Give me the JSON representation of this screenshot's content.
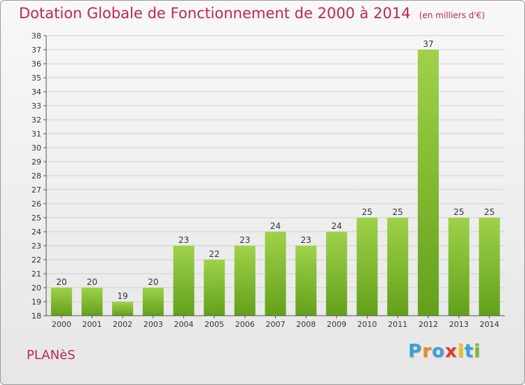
{
  "title": "Dotation Globale de Fonctionnement de 2000 à 2014",
  "subtitle": "(en milliers d'€)",
  "commune": "PLANèS",
  "logo": {
    "text": "Proxiti",
    "colors": [
      "#3aa0d8",
      "#f08a1c",
      "#3aa0d8",
      "#e23b2e",
      "#f2c200",
      "#3aa0d8",
      "#7ab929"
    ]
  },
  "colors": {
    "title": "#c0255a",
    "bar_top": "#9fd24a",
    "bar_bottom": "#63a01a",
    "grid": "#d0d0d0"
  },
  "chart_data": {
    "type": "bar",
    "title": "Dotation Globale de Fonctionnement de 2000 à 2014",
    "subtitle": "(en milliers d'€)",
    "xlabel": "",
    "ylabel": "",
    "categories": [
      "2000",
      "2001",
      "2002",
      "2003",
      "2004",
      "2005",
      "2006",
      "2007",
      "2008",
      "2009",
      "2010",
      "2011",
      "2012",
      "2013",
      "2014"
    ],
    "values": [
      20,
      20,
      19,
      20,
      23,
      22,
      23,
      24,
      23,
      24,
      25,
      25,
      37,
      25,
      25
    ],
    "ylim": [
      18,
      38
    ],
    "yticks": [
      18,
      19,
      20,
      21,
      22,
      23,
      24,
      25,
      26,
      27,
      28,
      29,
      30,
      31,
      32,
      33,
      34,
      35,
      36,
      37,
      38
    ],
    "grid": true,
    "legend": "none"
  }
}
